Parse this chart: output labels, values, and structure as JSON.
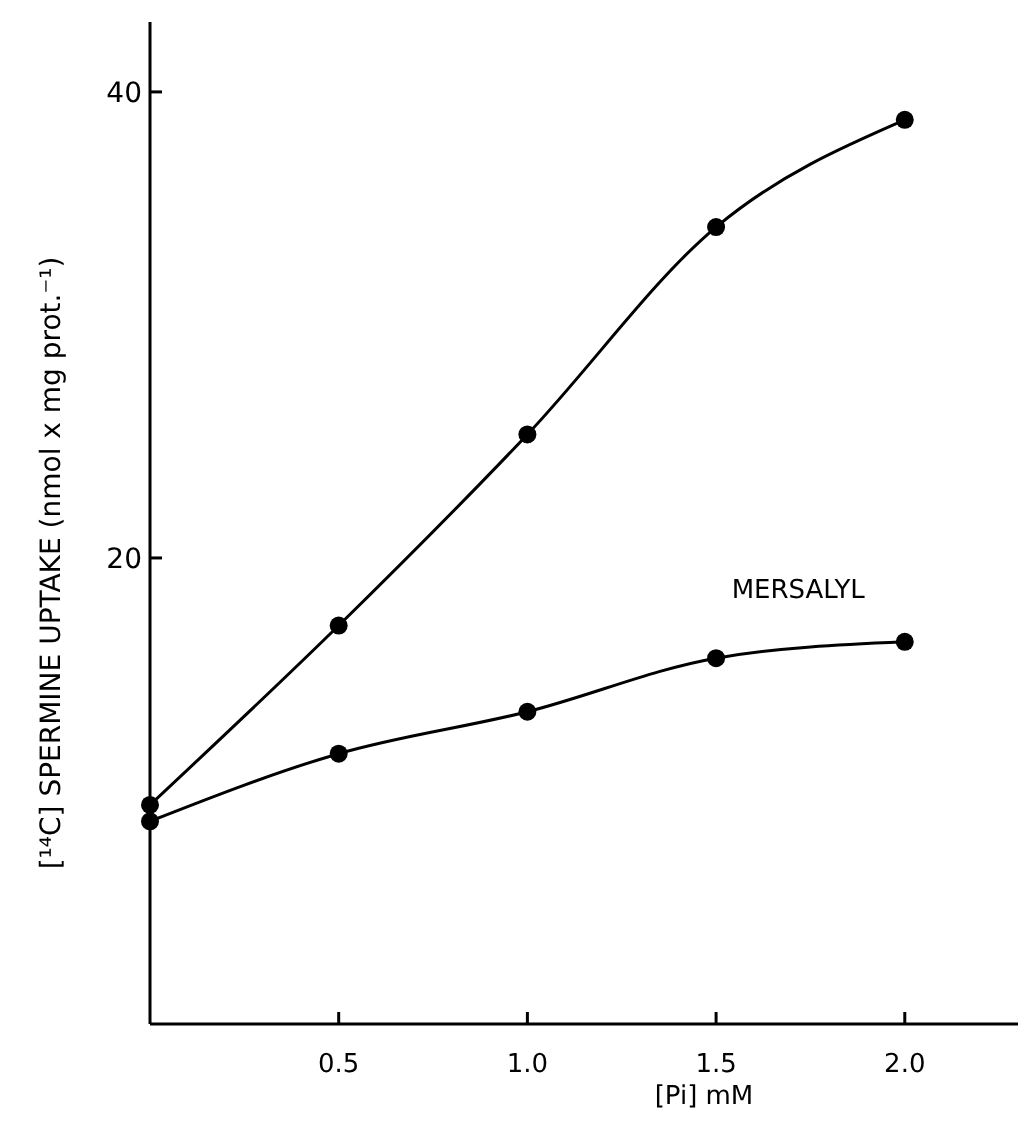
{
  "chart_data": {
    "type": "line",
    "xlabel": "[Pi]  mM",
    "ylabel": "[¹⁴C] SPERMINE UPTAKE (nmol x mg prot.⁻¹)",
    "x": [
      0,
      0.5,
      1.0,
      1.5,
      2.0
    ],
    "series": [
      {
        "color": "#000000",
        "values": [
          9.4,
          17.1,
          25.3,
          34.2,
          38.8
        ]
      },
      {
        "name": "MERSALYL",
        "color": "#000000",
        "values": [
          8.7,
          11.6,
          13.4,
          15.7,
          16.4
        ]
      }
    ],
    "xlim": [
      0,
      2.3
    ],
    "xticks": [
      {
        "value": 0.5,
        "label": "0.5"
      },
      {
        "value": 1,
        "label": "1.0"
      },
      {
        "value": 1.5,
        "label": "1.5"
      },
      {
        "value": 2,
        "label": "2.0"
      }
    ],
    "ylim": [
      0,
      43
    ],
    "yticks": [
      20,
      40
    ],
    "marker": "circle",
    "line_style": "solid"
  }
}
